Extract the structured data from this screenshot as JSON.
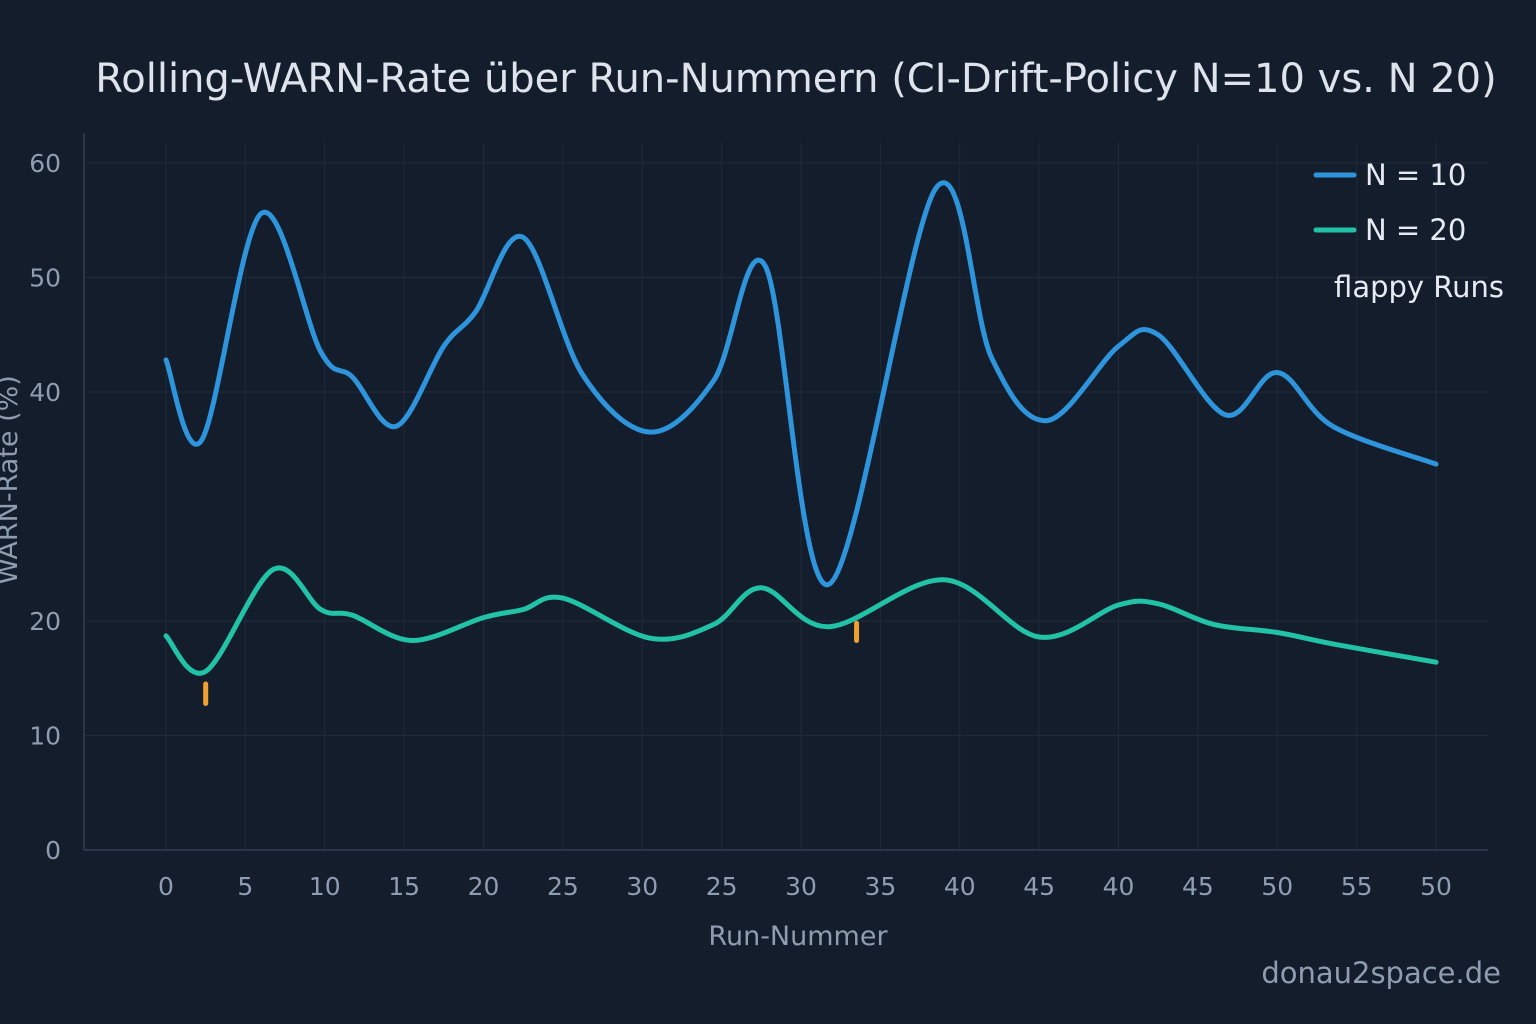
{
  "colors": {
    "background": "#131d2c",
    "series_n10": "#2e95dc",
    "series_n20": "#22c2a6",
    "flappy": "#f0a030"
  },
  "watermark": "donau2space.de",
  "chart_data": {
    "type": "line",
    "title": "Rolling-WARN-Rate über Run-Nummern (CI-Drift-Policy N=10 vs. N 20)",
    "xlabel": "Run-Nummer",
    "ylabel": "WARN-Rate (%)",
    "ylim": [
      0,
      60
    ],
    "yticks": [
      0,
      10,
      20,
      40,
      50,
      60
    ],
    "xlim": [
      0,
      16
    ],
    "xtick_positions": [
      0,
      1,
      2,
      3,
      4,
      5,
      6,
      7,
      8,
      9,
      10,
      11,
      12,
      13,
      14,
      15,
      16
    ],
    "xtick_labels": [
      "0",
      "5",
      "10",
      "15",
      "20",
      "25",
      "30",
      "25",
      "30",
      "35",
      "40",
      "45",
      "40",
      "45",
      "50",
      "55",
      "50"
    ],
    "grid": true,
    "legend_position": "top-right",
    "series": [
      {
        "name": "N = 10",
        "color": "#2e95dc",
        "points": [
          [
            0,
            42.8
          ],
          [
            0.45,
            35.8
          ],
          [
            1.2,
            55.6
          ],
          [
            1.95,
            43.5
          ],
          [
            2.35,
            41.3
          ],
          [
            2.9,
            37.0
          ],
          [
            3.5,
            44.0
          ],
          [
            3.9,
            47.0
          ],
          [
            4.5,
            53.5
          ],
          [
            5.25,
            41.5
          ],
          [
            6.1,
            36.5
          ],
          [
            6.9,
            41.0
          ],
          [
            7.55,
            51.0
          ],
          [
            8.35,
            23.2
          ],
          [
            9.7,
            57.8
          ],
          [
            10.4,
            43.0
          ],
          [
            11.1,
            37.5
          ],
          [
            12.0,
            44.0
          ],
          [
            12.5,
            45.0
          ],
          [
            13.35,
            38.0
          ],
          [
            14.0,
            41.7
          ],
          [
            14.7,
            37.0
          ],
          [
            16.0,
            33.7
          ]
        ]
      },
      {
        "name": "N = 20",
        "color": "#22c2a6",
        "points": [
          [
            0,
            18.7
          ],
          [
            0.5,
            15.6
          ],
          [
            1.35,
            24.5
          ],
          [
            1.95,
            21.0
          ],
          [
            2.35,
            20.5
          ],
          [
            3.1,
            18.3
          ],
          [
            4.0,
            20.3
          ],
          [
            4.5,
            21.0
          ],
          [
            5.0,
            22.0
          ],
          [
            6.1,
            18.5
          ],
          [
            6.9,
            19.7
          ],
          [
            7.5,
            22.9
          ],
          [
            8.35,
            19.5
          ],
          [
            9.8,
            23.6
          ],
          [
            11.0,
            18.6
          ],
          [
            12.0,
            21.4
          ],
          [
            12.5,
            21.5
          ],
          [
            13.2,
            19.7
          ],
          [
            14.0,
            19.0
          ],
          [
            14.7,
            18.0
          ],
          [
            16.0,
            16.4
          ]
        ]
      }
    ],
    "flappy_runs": {
      "label": "flappy Runs",
      "marks": [
        {
          "x": 0.5,
          "y_from": 12.8,
          "y_to": 14.5
        },
        {
          "x": 8.7,
          "y_from": 18.3,
          "y_to": 19.8
        }
      ]
    }
  }
}
